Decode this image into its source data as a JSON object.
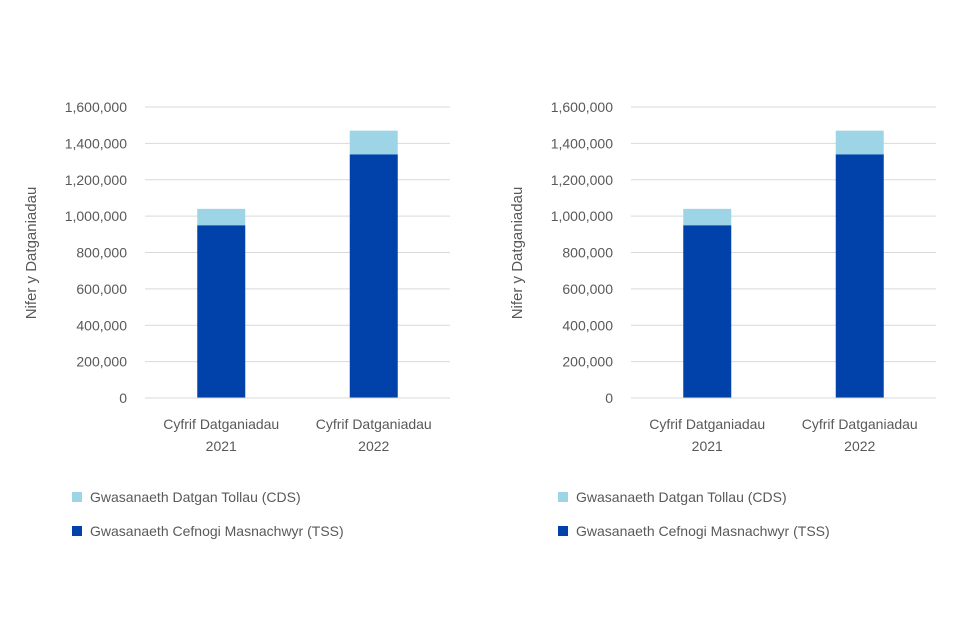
{
  "chart_data": [
    {
      "type": "bar",
      "stacked": true,
      "categories": [
        [
          "Cyfrif Datganiadau",
          "2021"
        ],
        [
          "Cyfrif Datganiadau",
          "2022"
        ]
      ],
      "series": [
        {
          "name": "Gwasanaeth Cefnogi Masnachwyr (TSS)",
          "values": [
            950000,
            1340000
          ],
          "color": "#0041AA"
        },
        {
          "name": "Gwasanaeth Datgan Tollau (CDS)",
          "values": [
            90000,
            130000
          ],
          "color": "#9ED5E6"
        }
      ],
      "ylabel": "Nifer y Datganiadau",
      "yticks": [
        "0",
        "200,000",
        "400,000",
        "600,000",
        "800,000",
        "1,000,000",
        "1,200,000",
        "1,400,000",
        "1,600,000"
      ],
      "ylim": [
        0,
        1600000
      ],
      "grid": true,
      "legend_position": "bottom"
    },
    {
      "type": "bar",
      "stacked": true,
      "categories": [
        [
          "Cyfrif Datganiadau",
          "2021"
        ],
        [
          "Cyfrif Datganiadau",
          "2022"
        ]
      ],
      "series": [
        {
          "name": "Gwasanaeth Cefnogi Masnachwyr (TSS)",
          "values": [
            950000,
            1340000
          ],
          "color": "#0041AA"
        },
        {
          "name": "Gwasanaeth Datgan Tollau (CDS)",
          "values": [
            90000,
            130000
          ],
          "color": "#9ED5E6"
        }
      ],
      "ylabel": "Nifer y Datganiadau",
      "yticks": [
        "0",
        "200,000",
        "400,000",
        "600,000",
        "800,000",
        "1,000,000",
        "1,200,000",
        "1,400,000",
        "1,600,000"
      ],
      "ylim": [
        0,
        1600000
      ],
      "grid": true,
      "legend_position": "bottom"
    }
  ],
  "legends": [
    {
      "items": [
        {
          "label": "Gwasanaeth Datgan Tollau (CDS)",
          "color": "#9ED5E6"
        },
        {
          "label": "Gwasanaeth Cefnogi Masnachwyr (TSS)",
          "color": "#0041AA"
        }
      ]
    },
    {
      "items": [
        {
          "label": "Gwasanaeth Datgan Tollau (CDS)",
          "color": "#9ED5E6"
        },
        {
          "label": "Gwasanaeth Cefnogi Masnachwyr (TSS)",
          "color": "#0041AA"
        }
      ]
    }
  ]
}
